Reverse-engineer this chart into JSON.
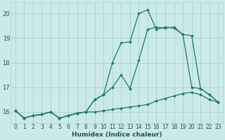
{
  "xlabel": "Humidex (Indice chaleur)",
  "xlim": [
    -0.5,
    23.5
  ],
  "ylim": [
    15.55,
    20.45
  ],
  "yticks": [
    16,
    17,
    18,
    19,
    20
  ],
  "xticks": [
    0,
    1,
    2,
    3,
    4,
    5,
    6,
    7,
    8,
    9,
    10,
    11,
    12,
    13,
    14,
    15,
    16,
    17,
    18,
    19,
    20,
    21,
    22,
    23
  ],
  "bg_color": "#cce9e9",
  "grid_color": "#aad4d4",
  "line_color": "#1a7a6e",
  "lines": [
    [
      16.05,
      15.75,
      15.85,
      15.9,
      16.0,
      15.75,
      15.85,
      15.95,
      16.0,
      16.0,
      16.05,
      16.1,
      16.15,
      16.2,
      16.25,
      16.3,
      16.45,
      16.55,
      16.65,
      16.75,
      16.8,
      16.7,
      16.5,
      16.4
    ],
    [
      16.05,
      15.75,
      15.85,
      15.9,
      16.0,
      15.75,
      15.85,
      15.95,
      16.0,
      16.5,
      16.7,
      17.0,
      17.5,
      16.95,
      18.1,
      19.35,
      19.45,
      19.4,
      19.45,
      19.15,
      19.1,
      16.95,
      16.7,
      16.4
    ],
    [
      16.05,
      15.75,
      15.85,
      15.9,
      16.0,
      15.75,
      15.85,
      15.95,
      16.0,
      16.5,
      16.7,
      18.0,
      18.8,
      18.85,
      20.0,
      20.15,
      19.35,
      19.45,
      19.4,
      19.15,
      17.0,
      16.95,
      16.7,
      16.4
    ]
  ]
}
